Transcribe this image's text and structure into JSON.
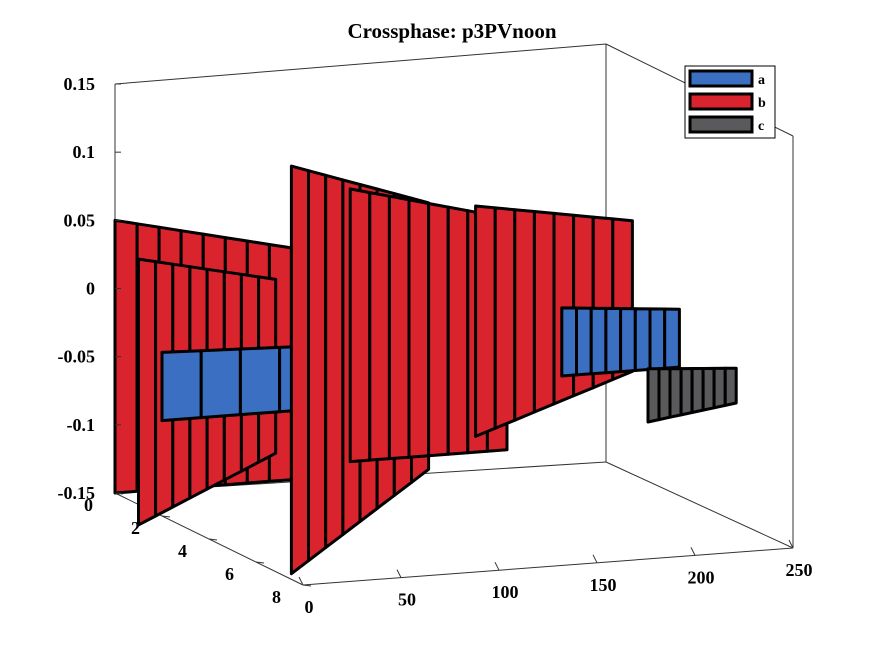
{
  "chart_data": {
    "type": "3d-surface-ribbons",
    "title": "Crossphase: p3PVnoon",
    "colors": {
      "a": "#3a6fc2",
      "b": "#d9242e",
      "c": "#5a5a5c",
      "edge": "#000000"
    },
    "axes": {
      "x": {
        "lim": [
          0,
          250
        ],
        "ticks": [
          0,
          50,
          100,
          150,
          200,
          250
        ]
      },
      "y": {
        "lim": [
          0,
          8
        ],
        "ticks": [
          0,
          2,
          4,
          6,
          8
        ]
      },
      "z": {
        "lim": [
          -0.15,
          0.15
        ],
        "ticks": [
          -0.15,
          -0.1,
          -0.05,
          0,
          0.05,
          0.1,
          0.15
        ],
        "tick_labels": [
          "-0.15",
          "-0.1",
          "-0.05",
          "0",
          "0.05",
          "0.1",
          "0.15"
        ]
      }
    },
    "legend": {
      "placement": "top-right",
      "entries": [
        "a",
        "b",
        "c"
      ]
    },
    "series": [
      {
        "name": "a",
        "color": "#3a6fc2"
      },
      {
        "name": "b",
        "color": "#d9242e"
      },
      {
        "name": "c",
        "color": "#5a5a5c"
      }
    ],
    "panels": [
      {
        "series": "c",
        "x": [
          0,
          40
        ],
        "y": [
          2,
          0
        ],
        "z": [
          -0.04,
          0.01
        ],
        "depth": 2.0
      },
      {
        "series": "c",
        "x": [
          0,
          40
        ],
        "y": [
          3,
          1
        ],
        "z": [
          -0.055,
          -0.005
        ],
        "depth": 2.0
      },
      {
        "series": "b",
        "x": [
          0,
          90
        ],
        "y": [
          8,
          8
        ],
        "z": [
          -0.15,
          0.05
        ],
        "depth": 7.0
      },
      {
        "series": "b",
        "x": [
          0,
          70
        ],
        "y": [
          7,
          7
        ],
        "z": [
          -0.12,
          0.03
        ],
        "depth": 6.0
      },
      {
        "series": "a",
        "x": [
          0,
          160
        ],
        "y": [
          6,
          6
        ],
        "z": [
          -0.08,
          -0.03
        ],
        "depth": 4.0
      },
      {
        "series": "b",
        "x": [
          90,
          160
        ],
        "y": [
          8,
          8
        ],
        "z": [
          -0.15,
          0.08
        ],
        "depth": 7.0
      },
      {
        "series": "b",
        "x": [
          120,
          200
        ],
        "y": [
          8,
          8
        ],
        "z": [
          -0.14,
          0.06
        ],
        "depth": 7.0
      },
      {
        "series": "b",
        "x": [
          160,
          240
        ],
        "y": [
          6,
          6
        ],
        "z": [
          -0.07,
          0.06
        ],
        "depth": 6.0
      },
      {
        "series": "a",
        "x": [
          180,
          240
        ],
        "y": [
          4,
          4
        ],
        "z": [
          -0.05,
          0.0
        ],
        "depth": 3.0
      },
      {
        "series": "c",
        "x": [
          200,
          245
        ],
        "y": [
          2,
          2
        ],
        "z": [
          -0.06,
          -0.03
        ],
        "depth": 2.0
      }
    ]
  }
}
